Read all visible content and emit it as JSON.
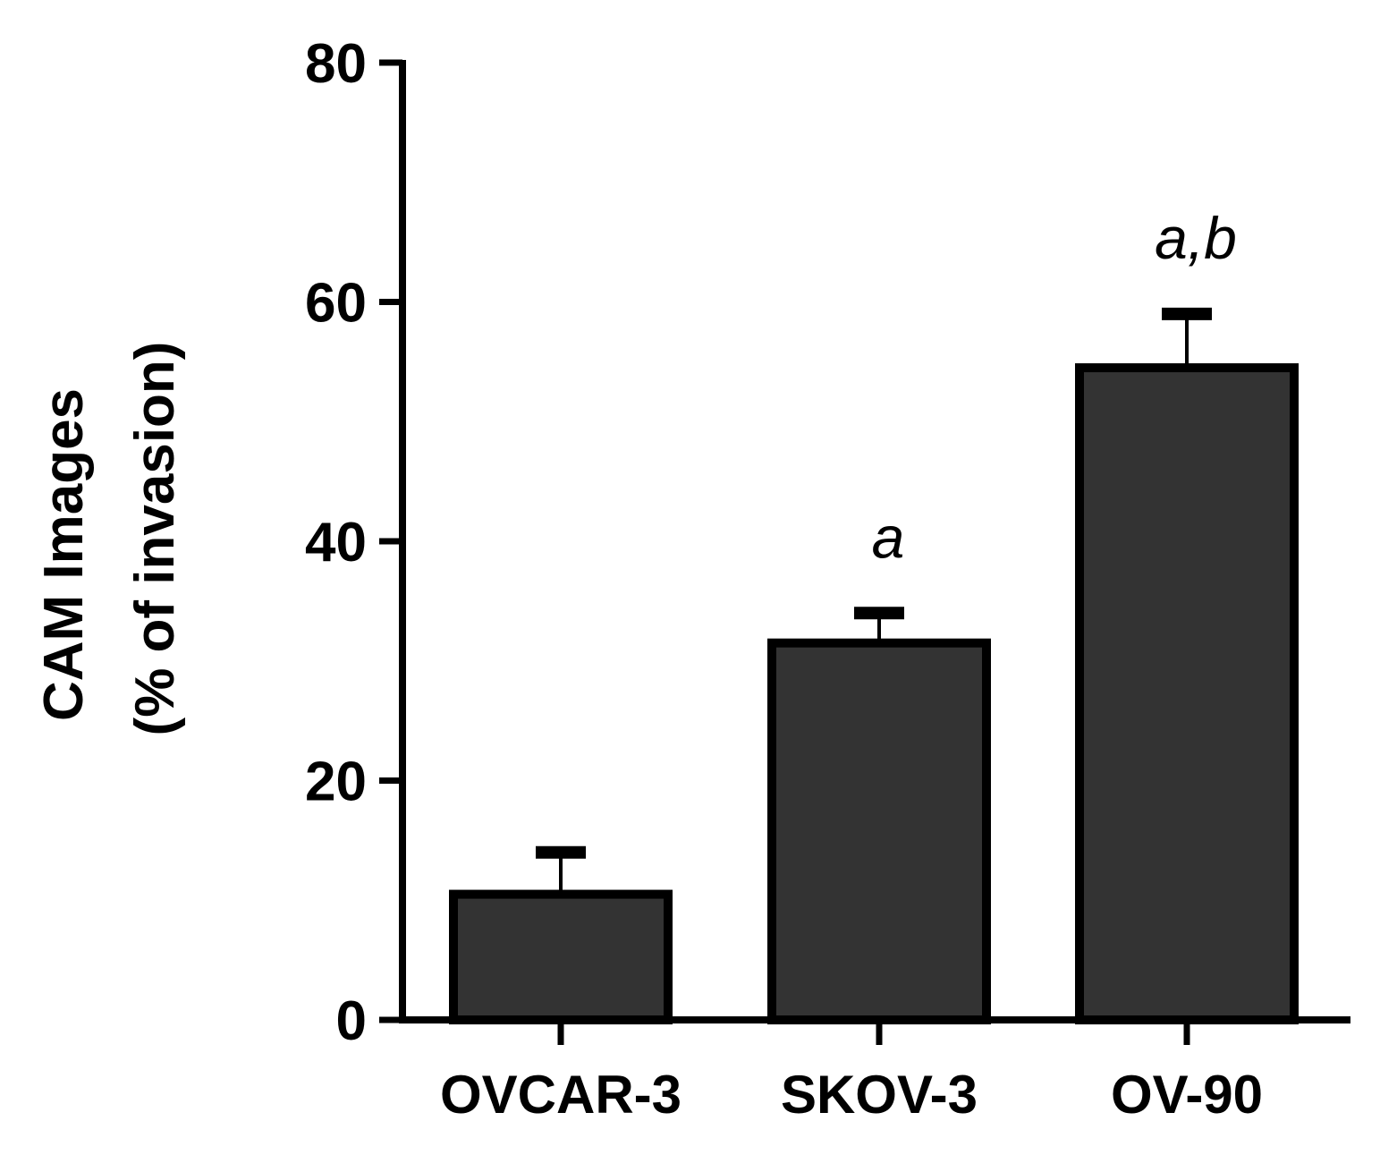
{
  "chart_data": {
    "type": "bar",
    "title": "",
    "xlabel": "",
    "ylabel": [
      "CAM Images",
      "(% of invasion)"
    ],
    "categories": [
      "OVCAR-3",
      "SKOV-3",
      "OV-90"
    ],
    "values": [
      10.5,
      31.5,
      54.5
    ],
    "errors": [
      3.5,
      2.5,
      4.5
    ],
    "annotations": [
      "",
      "a",
      "a,b"
    ],
    "ylim": [
      0,
      80
    ],
    "yticks": [
      0,
      20,
      40,
      60,
      80
    ],
    "ytick_labels": [
      "0",
      "20",
      "40",
      "60",
      "80"
    ],
    "grid": false,
    "colors": {
      "bar_fill": "#333333",
      "bar_edge": "#000000",
      "axis": "#000000"
    }
  }
}
